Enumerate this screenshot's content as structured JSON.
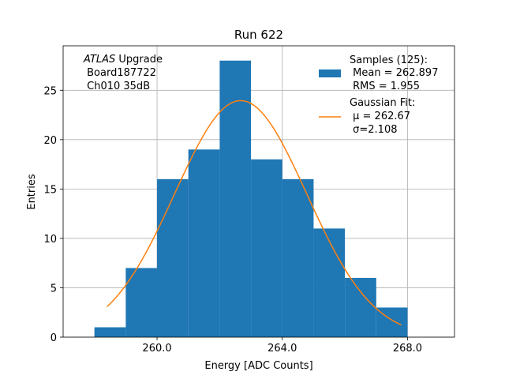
{
  "chart_data": {
    "type": "histogram",
    "title": "Run 622",
    "xlabel": "Energy [ADC Counts]",
    "ylabel": "Entries",
    "xlim": [
      257.0,
      269.5
    ],
    "ylim": [
      0,
      29.5
    ],
    "grid": true,
    "x_ticks": [
      260.0,
      264.0,
      268.0
    ],
    "x_tick_labels": [
      "260.0",
      "264.0",
      "268.0"
    ],
    "y_ticks": [
      0,
      5,
      10,
      15,
      20,
      25
    ],
    "y_tick_labels": [
      "0",
      "5",
      "10",
      "15",
      "20",
      "25"
    ],
    "histogram": {
      "name": "Samples (125):",
      "color": "#1f77b4",
      "bin_edges": [
        258.0,
        259.0,
        260.0,
        261.0,
        262.0,
        263.0,
        264.0,
        265.0,
        266.0,
        267.0,
        268.0
      ],
      "counts": [
        1,
        7,
        16,
        19,
        28,
        18,
        16,
        11,
        6,
        3
      ]
    },
    "fit": {
      "name": "Gaussian Fit:",
      "type": "gaussian",
      "color": "#ff7f0e",
      "mu": 262.67,
      "sigma": 2.108,
      "amplitude": 23.95,
      "x_range": [
        258.4,
        267.8
      ]
    },
    "annotation": {
      "experiment": "ATLAS",
      "suffix": " Upgrade",
      "line2": " Board187722",
      "line3": " Ch010 35dB"
    },
    "legend": {
      "position": "top-right",
      "hist_lines": [
        "Samples (125):",
        " Mean = 262.897",
        " RMS = 1.955"
      ],
      "fit_lines": [
        "Gaussian Fit:",
        " μ = 262.67",
        " σ=2.108"
      ]
    }
  }
}
